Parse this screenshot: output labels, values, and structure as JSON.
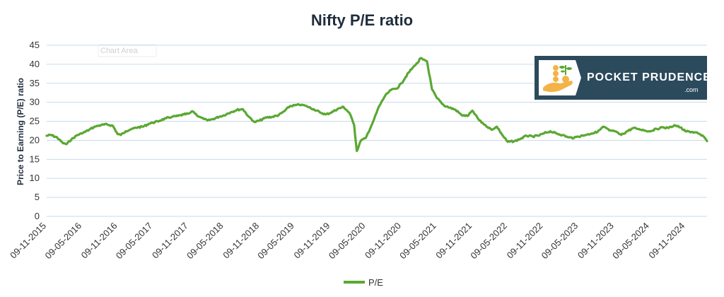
{
  "colors": {
    "series": "#5aa832",
    "grid": "#c9dbea",
    "logo_bg": "#2b4a5c",
    "title": "#1f2d3d"
  },
  "chart_data": {
    "type": "line",
    "title": "Nifty P/E ratio",
    "xlabel": "",
    "ylabel": "Price to Earning (P/E) ratio",
    "ylim": [
      0,
      45
    ],
    "yticks": [
      "0",
      "5",
      "10",
      "15",
      "20",
      "25",
      "30",
      "35",
      "40",
      "45"
    ],
    "xticks": [
      "09-11-2015",
      "09-05-2016",
      "09-11-2016",
      "09-05-2017",
      "09-11-2017",
      "09-05-2018",
      "09-11-2018",
      "09-05-2019",
      "09-11-2019",
      "09-05-2020",
      "09-11-2020",
      "09-05-2021",
      "09-11-2021",
      "09-05-2022",
      "09-11-2022",
      "09-05-2023",
      "09-11-2023",
      "09-05-2024",
      "09-11-2024"
    ],
    "legend": "bottom",
    "grid": true,
    "series": [
      {
        "name": "P/E",
        "x": [
          "2015-11-09",
          "2015-12-01",
          "2016-01-01",
          "2016-02-01",
          "2016-02-20",
          "2016-03-15",
          "2016-04-15",
          "2016-05-09",
          "2016-06-15",
          "2016-07-15",
          "2016-08-15",
          "2016-09-15",
          "2016-10-15",
          "2016-11-09",
          "2016-11-25",
          "2016-12-20",
          "2017-01-20",
          "2017-02-20",
          "2017-03-20",
          "2017-04-20",
          "2017-05-09",
          "2017-06-15",
          "2017-07-15",
          "2017-08-15",
          "2017-09-15",
          "2017-10-15",
          "2017-11-09",
          "2017-12-01",
          "2018-01-01",
          "2018-01-25",
          "2018-02-15",
          "2018-03-15",
          "2018-04-15",
          "2018-05-09",
          "2018-06-15",
          "2018-07-15",
          "2018-08-15",
          "2018-09-15",
          "2018-10-15",
          "2018-11-09",
          "2018-12-15",
          "2019-01-15",
          "2019-02-15",
          "2019-03-15",
          "2019-04-15",
          "2019-05-09",
          "2019-06-15",
          "2019-07-15",
          "2019-08-15",
          "2019-09-15",
          "2019-10-15",
          "2019-11-09",
          "2019-12-15",
          "2020-01-15",
          "2020-02-15",
          "2020-03-10",
          "2020-03-24",
          "2020-04-15",
          "2020-05-09",
          "2020-06-15",
          "2020-07-15",
          "2020-08-15",
          "2020-09-15",
          "2020-10-15",
          "2020-11-09",
          "2020-12-15",
          "2021-01-15",
          "2021-02-01",
          "2021-02-15",
          "2021-03-01",
          "2021-03-20",
          "2021-04-15",
          "2021-05-09",
          "2021-06-15",
          "2021-07-15",
          "2021-08-15",
          "2021-09-15",
          "2021-10-15",
          "2021-11-09",
          "2021-12-15",
          "2022-01-15",
          "2022-02-15",
          "2022-03-15",
          "2022-04-15",
          "2022-05-09",
          "2022-06-15",
          "2022-07-15",
          "2022-08-15",
          "2022-09-15",
          "2022-10-15",
          "2022-11-09",
          "2022-12-15",
          "2023-01-15",
          "2023-02-15",
          "2023-03-15",
          "2023-04-15",
          "2023-05-09",
          "2023-06-15",
          "2023-07-15",
          "2023-08-15",
          "2023-09-15",
          "2023-10-15",
          "2023-11-09",
          "2023-12-15",
          "2024-01-15",
          "2024-02-15",
          "2024-03-15",
          "2024-04-15",
          "2024-05-09",
          "2024-06-15",
          "2024-07-15",
          "2024-08-15",
          "2024-09-15",
          "2024-10-15",
          "2024-11-09",
          "2024-12-15",
          "2025-01-15",
          "2025-02-15",
          "2025-03-01"
        ],
        "values": [
          21.2,
          21.4,
          20.8,
          19.2,
          19.0,
          20.2,
          21.4,
          21.8,
          22.8,
          23.6,
          24.0,
          24.2,
          23.8,
          21.6,
          21.4,
          22.4,
          23.0,
          23.4,
          23.6,
          24.4,
          24.6,
          25.2,
          25.8,
          26.2,
          26.4,
          26.8,
          27.0,
          27.6,
          26.2,
          25.6,
          25.2,
          25.6,
          26.2,
          26.6,
          27.4,
          28.0,
          28.2,
          26.2,
          24.8,
          25.2,
          26.0,
          26.2,
          26.6,
          27.6,
          29.0,
          29.2,
          29.4,
          28.8,
          28.2,
          27.4,
          26.8,
          27.2,
          28.2,
          28.8,
          27.2,
          24.0,
          17.2,
          20.0,
          20.6,
          24.8,
          28.8,
          31.6,
          33.2,
          33.6,
          35.0,
          37.8,
          39.6,
          40.4,
          41.6,
          41.2,
          40.8,
          33.4,
          31.2,
          29.2,
          28.6,
          28.0,
          26.6,
          26.4,
          27.8,
          25.2,
          24.0,
          22.8,
          23.6,
          21.2,
          19.6,
          19.8,
          20.4,
          21.2,
          21.0,
          21.2,
          21.8,
          22.4,
          21.8,
          21.4,
          20.8,
          20.6,
          21.0,
          21.4,
          21.8,
          22.2,
          23.6,
          22.6,
          22.4,
          21.4,
          22.4,
          23.2,
          23.0,
          22.6,
          22.4,
          23.0,
          23.4,
          23.2,
          24.0,
          23.4,
          22.4,
          22.2,
          21.8,
          20.8,
          19.8
        ]
      }
    ]
  },
  "logo": {
    "brand": "POCKET  PRUDENCE",
    "domain": ".com"
  },
  "chart_area_tag": "Chart Area"
}
